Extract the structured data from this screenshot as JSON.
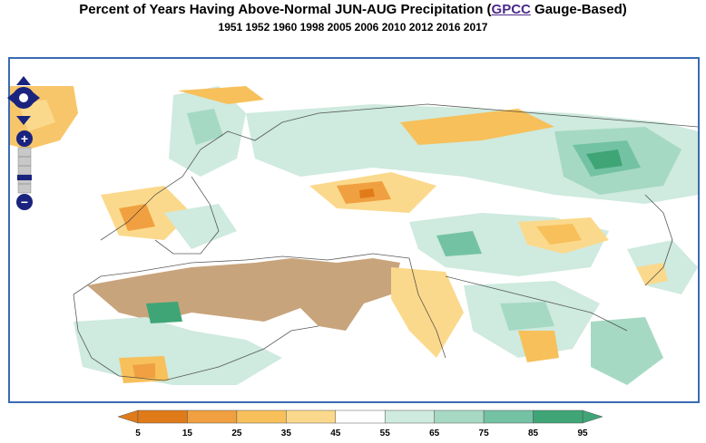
{
  "header": {
    "title_prefix": "Percent of Years Having Above-Normal JUN-AUG Precipitation (",
    "title_link": "GPCC",
    "title_suffix": " Gauge-Based)",
    "years": "1951 1952 1960 1998 2005 2006 2010 2012 2016 2017"
  },
  "map_controls": {
    "pan": "pan-control",
    "zoom_in": "+",
    "zoom_out": "−"
  },
  "legend": {
    "ticks": [
      "5",
      "15",
      "25",
      "35",
      "45",
      "55",
      "65",
      "75",
      "85",
      "95"
    ],
    "colors": [
      "#e07b1a",
      "#f0a040",
      "#f7c05a",
      "#fbd98c",
      "#ffffff",
      "#cfeadf",
      "#a6d9c4",
      "#74c2a4",
      "#3fa577"
    ],
    "masked_color": "#c8a47c"
  }
}
